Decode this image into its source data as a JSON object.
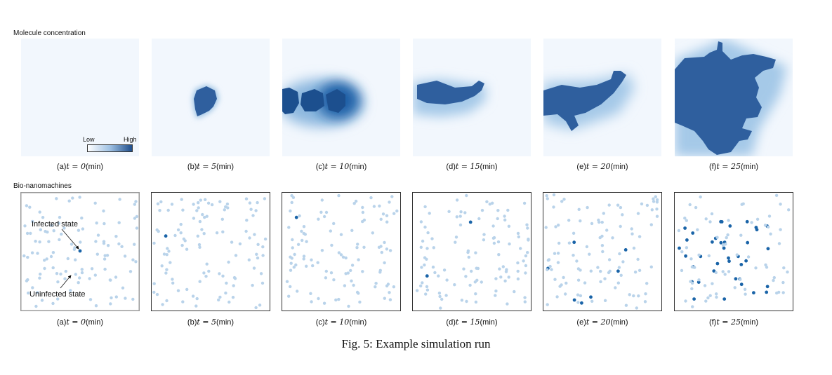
{
  "row_labels": {
    "top": "Molecule concentration",
    "bottom": "Bio-nanomachines"
  },
  "legend": {
    "low": "Low",
    "high": "High",
    "low_color": "#ffffff",
    "high_color": "#1f4e8c"
  },
  "captions": [
    {
      "prefix": "(a)",
      "math": "t = 0",
      "unit": "(min)"
    },
    {
      "prefix": "(b)",
      "math": "t = 5",
      "unit": "(min)"
    },
    {
      "prefix": "(c)",
      "math": "t = 10",
      "unit": "(min)"
    },
    {
      "prefix": "(d)",
      "math": "t = 15",
      "unit": "(min)"
    },
    {
      "prefix": "(e)",
      "math": "t = 20",
      "unit": "(min)"
    },
    {
      "prefix": "(f)",
      "math": "t = 25",
      "unit": "(min)"
    }
  ],
  "annotations": {
    "infected": "Infected state",
    "uninfected": "Uninfected state"
  },
  "colors": {
    "uninfected": "#b9d3ea",
    "infected": "#1a64a8",
    "blob": "#2f5f9e",
    "haze": "#eef5fc"
  },
  "infected_counts": [
    1,
    1,
    1,
    2,
    7,
    38
  ],
  "figure_caption": "Fig. 5: Example simulation run"
}
